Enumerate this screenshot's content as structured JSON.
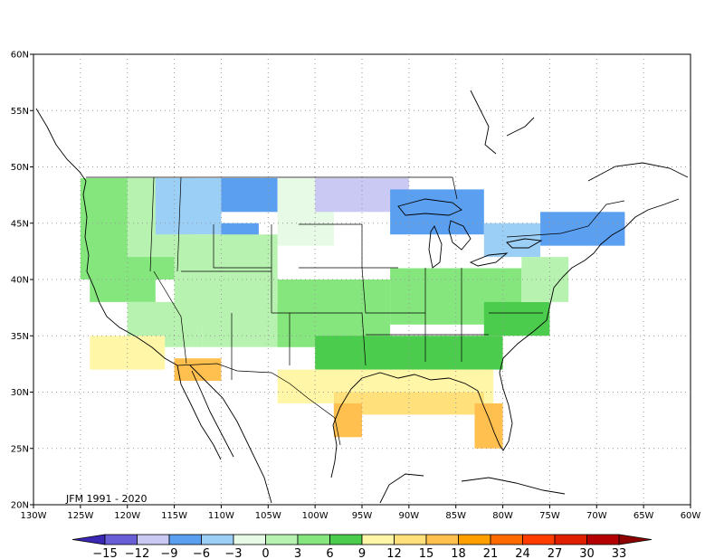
{
  "map": {
    "period_label": "JFM 1991 - 2020",
    "lon_ticks": [
      "130W",
      "125W",
      "120W",
      "115W",
      "110W",
      "105W",
      "100W",
      "95W",
      "90W",
      "85W",
      "80W",
      "75W",
      "70W",
      "65W",
      "60W"
    ],
    "lat_ticks": [
      "20N",
      "25N",
      "30N",
      "35N",
      "40N",
      "45N",
      "50N",
      "55N",
      "60N"
    ],
    "extent": {
      "lon_min": -130,
      "lon_max": -60,
      "lat_min": 20,
      "lat_max": 60
    },
    "grid": "dotted"
  },
  "colorbar": {
    "labels": [
      "-15",
      "-12",
      "-9",
      "-6",
      "-3",
      "0",
      "3",
      "6",
      "9",
      "12",
      "15",
      "18",
      "21",
      "24",
      "27",
      "30",
      "33"
    ],
    "colors": [
      "#6a5ed6",
      "#c9c9f4",
      "#5a9ff0",
      "#9ccff6",
      "#e6fae6",
      "#b8f2b0",
      "#84e67c",
      "#4ccc4c",
      "#fff6a8",
      "#ffe07a",
      "#ffc050",
      "#ffa000",
      "#ff6a00",
      "#ff3c00",
      "#e01e00",
      "#b40000"
    ],
    "under_color": "#3a28b4",
    "over_color": "#8c0000"
  }
}
